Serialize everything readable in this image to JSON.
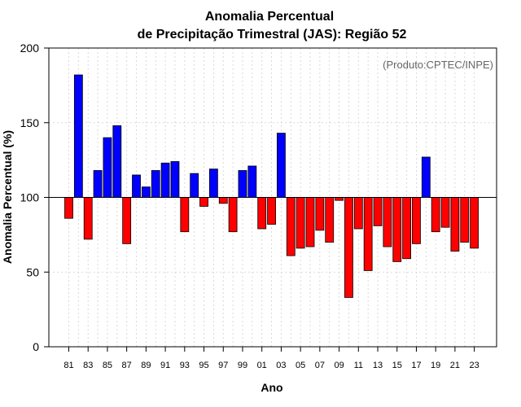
{
  "chart_data": {
    "type": "bar",
    "title_line1": "Anomalia Percentual",
    "title_line2": "de Precipitação Trimestral (JAS): Região 52",
    "xlabel": "Ano",
    "ylabel": "Anomalia Percentual (%)",
    "credit": "(Produto:CPTEC/INPE)",
    "baseline": 100,
    "ylim": [
      0,
      200
    ],
    "yticks": [
      0,
      50,
      100,
      150,
      200
    ],
    "grid": true,
    "categories": [
      "81",
      "82",
      "83",
      "84",
      "85",
      "86",
      "87",
      "88",
      "89",
      "90",
      "91",
      "92",
      "93",
      "94",
      "95",
      "96",
      "97",
      "98",
      "99",
      "00",
      "01",
      "02",
      "03",
      "04",
      "05",
      "06",
      "07",
      "08",
      "09",
      "10",
      "11",
      "12",
      "13",
      "14",
      "15",
      "16",
      "17",
      "18",
      "19",
      "20",
      "21",
      "22",
      "23"
    ],
    "xtick_labels": [
      "81",
      "83",
      "85",
      "87",
      "89",
      "91",
      "93",
      "95",
      "97",
      "99",
      "01",
      "03",
      "05",
      "07",
      "09",
      "11",
      "13",
      "15",
      "17",
      "19",
      "21",
      "23"
    ],
    "values": [
      86,
      182,
      72,
      118,
      140,
      148,
      69,
      115,
      107,
      118,
      123,
      124,
      77,
      116,
      94,
      119,
      96,
      77,
      118,
      121,
      79,
      82,
      143,
      61,
      66,
      67,
      78,
      70,
      98,
      33,
      79,
      51,
      81,
      67,
      57,
      59,
      69,
      127,
      77,
      80,
      64,
      70,
      66
    ],
    "colors": {
      "above": "#0000ff",
      "below": "#ff0000",
      "edge": "#000000",
      "grid": "#d0d0d0"
    }
  }
}
